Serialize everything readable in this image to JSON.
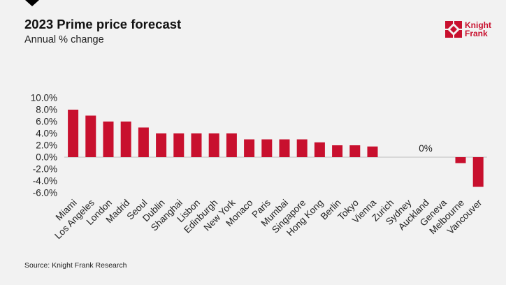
{
  "header": {
    "title": "2023 Prime price forecast",
    "subtitle": "Annual % change"
  },
  "logo": {
    "line1": "Knight",
    "line2": "Frank",
    "color": "#c8102e"
  },
  "footer": {
    "source": "Source: Knight Frank Research"
  },
  "chart_data": {
    "type": "bar",
    "categories": [
      "Miami",
      "Los Angeles",
      "London",
      "Madrid",
      "Seoul",
      "Dublin",
      "Shanghai",
      "Lisbon",
      "Edinburgh",
      "New York",
      "Monaco",
      "Paris",
      "Mumbai",
      "Singapore",
      "Hong Kong",
      "Berlin",
      "Tokyo",
      "Vienna",
      "Zurich",
      "Sydney",
      "Auckland",
      "Geneva",
      "Melbourne",
      "Vancouver"
    ],
    "values": [
      8,
      7,
      6,
      6,
      5,
      4,
      4,
      4,
      4,
      4,
      3,
      3,
      3,
      3,
      2.5,
      2,
      2,
      1.8,
      0,
      0,
      0,
      0,
      -1,
      -5
    ],
    "yticks": [
      "10.0%",
      "8.0%",
      "6.0%",
      "4.0%",
      "2.0%",
      "0.0%",
      "-2.0%",
      "-4.0%",
      "-6.0%"
    ],
    "ylim": [
      -6,
      10
    ],
    "annotation": "0%",
    "bar_color": "#c8102e",
    "grid": false
  }
}
